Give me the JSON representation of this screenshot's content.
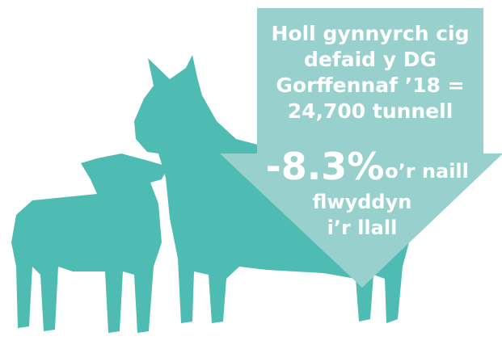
{
  "headline": [
    "Holl gynnyrch cig",
    "defaid y DG",
    "Gorffennaf ’18 =",
    "24,700 tunnell"
  ],
  "change": "-8.3%",
  "change_suffix": "o’r naill",
  "tail": [
    "flwyddyn",
    "i’r llall"
  ]
}
